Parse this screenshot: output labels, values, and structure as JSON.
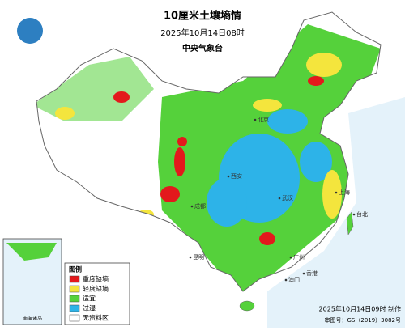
{
  "header": {
    "title": "10厘米土壤墒情",
    "time": "2025年10月14日08时",
    "agency": "中央气象台"
  },
  "legend": {
    "title": "图例",
    "items": [
      {
        "label": "重度缺墒",
        "color": "#e3191c"
      },
      {
        "label": "轻度缺墒",
        "color": "#f4e53d"
      },
      {
        "label": "适宜",
        "color": "#55d13b"
      },
      {
        "label": "过湿",
        "color": "#2db3e8"
      },
      {
        "label": "无资料区",
        "color": "#ffffff"
      }
    ]
  },
  "inset": {
    "label": "南海诸岛"
  },
  "cities": [
    "北京",
    "上海",
    "广州",
    "武汉",
    "西安",
    "成都",
    "昆明",
    "台北",
    "香港",
    "澳门"
  ],
  "footer": {
    "made": "2025年10月14日09时 制作",
    "approval": "审图号：GS（2019）3082号"
  }
}
